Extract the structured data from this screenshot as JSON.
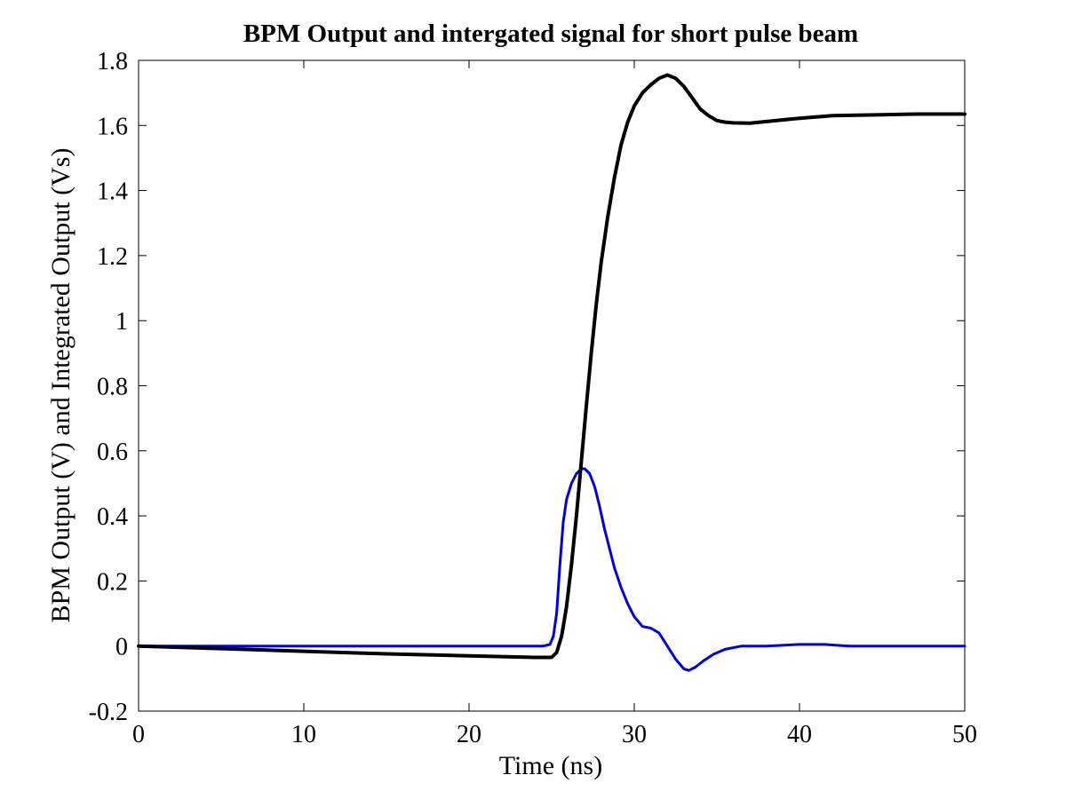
{
  "chart_data": {
    "type": "line",
    "title": "BPM Output and intergated signal for short pulse beam",
    "xlabel": "Time (ns)",
    "ylabel": "BPM Output (V) and Integrated Output (Vs)",
    "xlim": [
      0,
      50
    ],
    "ylim": [
      -0.2,
      1.8
    ],
    "xticks": [
      0,
      10,
      20,
      30,
      40,
      50
    ],
    "xtick_labels": [
      "0",
      "10",
      "20",
      "30",
      "40",
      "50"
    ],
    "yticks": [
      -0.2,
      0,
      0.2,
      0.4,
      0.6,
      0.8,
      1,
      1.2,
      1.4,
      1.6,
      1.8
    ],
    "ytick_labels": [
      "-0.2",
      "0",
      "0.2",
      "0.4",
      "0.6",
      "0.8",
      "1",
      "1.2",
      "1.4",
      "1.6",
      "1.8"
    ],
    "grid": false,
    "legend": "none",
    "series": [
      {
        "color": "#0000dd",
        "x": [
          0,
          5,
          10,
          15,
          20,
          23,
          24.5,
          24.9,
          25.1,
          25.3,
          25.5,
          25.7,
          25.9,
          26.2,
          26.5,
          26.8,
          27.0,
          27.3,
          27.6,
          27.9,
          28.2,
          28.5,
          28.8,
          29.2,
          29.6,
          30.0,
          30.5,
          31.0,
          31.5,
          32.0,
          32.5,
          33.0,
          33.3,
          33.7,
          34.2,
          34.8,
          35.5,
          36.5,
          38,
          40,
          41.5,
          43,
          45,
          47,
          50
        ],
        "y": [
          0.0,
          0.0,
          0.0,
          0.0,
          0.0,
          0.0,
          0.0,
          0.005,
          0.03,
          0.1,
          0.25,
          0.38,
          0.45,
          0.5,
          0.53,
          0.545,
          0.545,
          0.53,
          0.49,
          0.43,
          0.36,
          0.3,
          0.24,
          0.18,
          0.13,
          0.09,
          0.06,
          0.055,
          0.04,
          0.0,
          -0.04,
          -0.07,
          -0.075,
          -0.065,
          -0.045,
          -0.025,
          -0.01,
          0.0,
          0.0,
          0.005,
          0.005,
          0.0,
          0.0,
          0.0,
          0.0
        ]
      },
      {
        "color": "#000000",
        "x": [
          0,
          5,
          10,
          15,
          20,
          24,
          25.0,
          25.3,
          25.6,
          25.9,
          26.2,
          26.5,
          26.8,
          27.1,
          27.4,
          27.7,
          28.0,
          28.4,
          28.8,
          29.2,
          29.6,
          30.0,
          30.5,
          31.0,
          31.5,
          32.0,
          32.5,
          33.0,
          33.5,
          34.0,
          34.5,
          35.0,
          35.5,
          36.0,
          37.0,
          38.0,
          40.0,
          42.0,
          45.0,
          47.0,
          50.0
        ],
        "y": [
          0.0,
          -0.008,
          -0.016,
          -0.024,
          -0.03,
          -0.035,
          -0.035,
          -0.02,
          0.03,
          0.12,
          0.25,
          0.4,
          0.57,
          0.74,
          0.9,
          1.05,
          1.18,
          1.32,
          1.44,
          1.54,
          1.61,
          1.66,
          1.7,
          1.725,
          1.745,
          1.755,
          1.745,
          1.72,
          1.685,
          1.65,
          1.63,
          1.615,
          1.61,
          1.608,
          1.607,
          1.612,
          1.622,
          1.63,
          1.633,
          1.635,
          1.635
        ]
      }
    ]
  }
}
